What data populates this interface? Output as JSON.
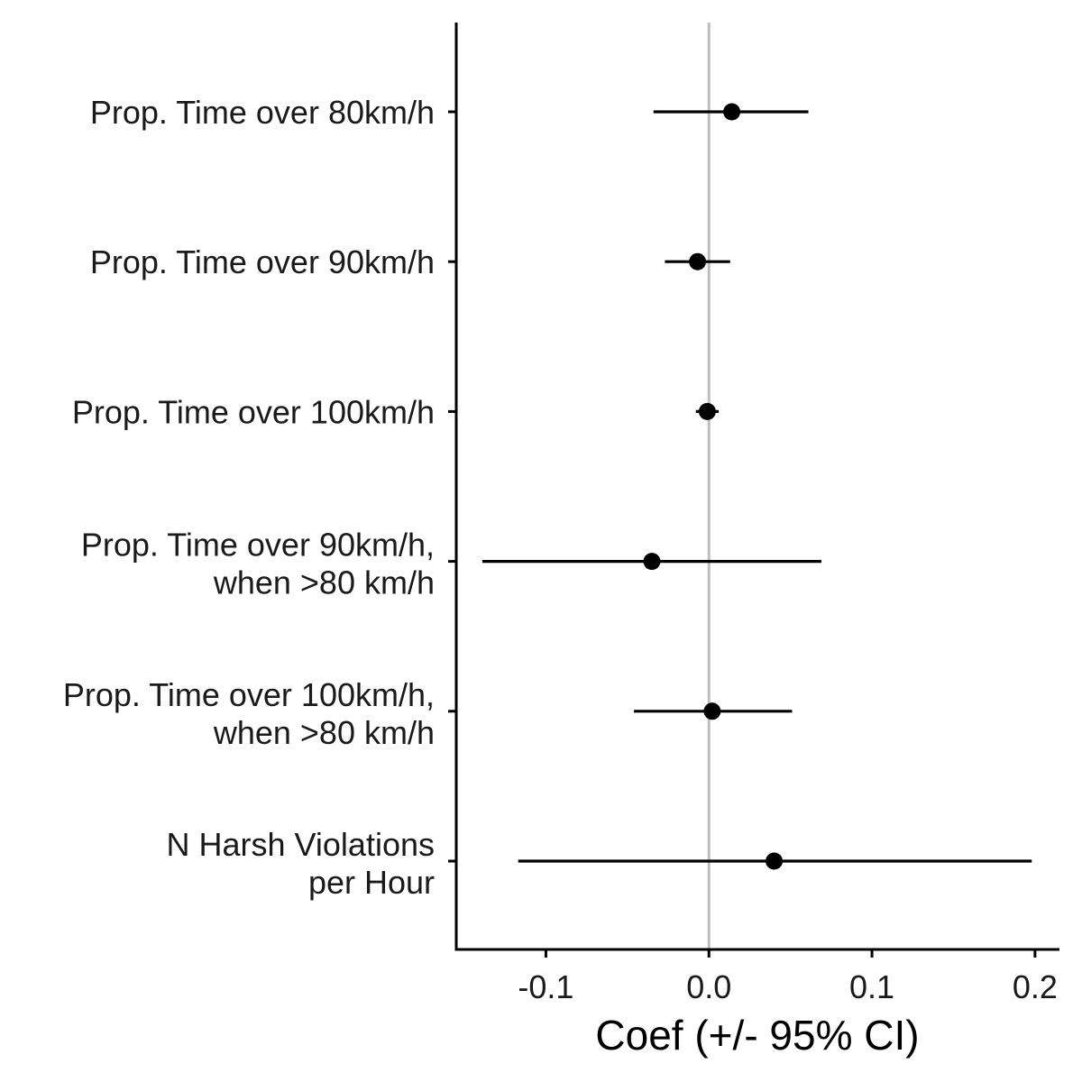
{
  "chart_data": {
    "type": "scatter",
    "subtype": "coefficient-plot",
    "title": "",
    "xlabel": "Coef (+/- 95% CI)",
    "ylabel": "",
    "xlim": [
      -0.155,
      0.215
    ],
    "x_ticks": [
      -0.1,
      0.0,
      0.1,
      0.2
    ],
    "x_tick_labels": [
      "-0.1",
      "0.0",
      "0.1",
      "0.2"
    ],
    "reference_line_x": 0,
    "grid": false,
    "legend": "none",
    "colors": {
      "points": "#000000",
      "reference_line": "#bdbdbd"
    },
    "rows": [
      {
        "label_lines": [
          "Prop. Time over 80km/h"
        ],
        "estimate": 0.014,
        "ci_low": -0.034,
        "ci_high": 0.061
      },
      {
        "label_lines": [
          "Prop. Time over 90km/h"
        ],
        "estimate": -0.007,
        "ci_low": -0.027,
        "ci_high": 0.013
      },
      {
        "label_lines": [
          "Prop. Time over 100km/h"
        ],
        "estimate": -0.001,
        "ci_low": -0.008,
        "ci_high": 0.006
      },
      {
        "label_lines": [
          "Prop. Time over 90km/h,",
          "when >80 km/h"
        ],
        "estimate": -0.035,
        "ci_low": -0.139,
        "ci_high": 0.069
      },
      {
        "label_lines": [
          "Prop. Time over 100km/h,",
          "when >80 km/h"
        ],
        "estimate": 0.002,
        "ci_low": -0.046,
        "ci_high": 0.051
      },
      {
        "label_lines": [
          "N Harsh Violations",
          "per Hour"
        ],
        "estimate": 0.04,
        "ci_low": -0.117,
        "ci_high": 0.198
      }
    ]
  }
}
